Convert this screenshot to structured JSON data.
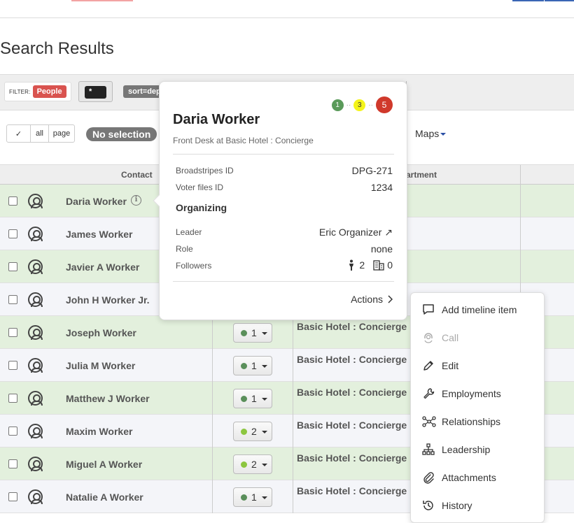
{
  "page": {
    "title": "Search Results"
  },
  "filter": {
    "label": "FILTER:",
    "chip": "People",
    "query": "*",
    "sort": "sort=dep"
  },
  "selection": {
    "check": "✓",
    "all": "all",
    "page": "page",
    "none": "No selection",
    "maps": "Maps"
  },
  "table": {
    "headers": {
      "contact": "Contact",
      "department": "artment"
    },
    "rows": [
      {
        "name": "Daria Worker",
        "rating": "",
        "employment": "",
        "style": "green",
        "info": true
      },
      {
        "name": "James Worker",
        "rating": "",
        "employment": "",
        "style": "plain"
      },
      {
        "name": "Javier A Worker",
        "rating": "",
        "employment": "",
        "style": "green"
      },
      {
        "name": "John H Worker Jr.",
        "rating": "",
        "employment": "",
        "style": "plain"
      },
      {
        "name": "Joseph Worker",
        "rating": "1",
        "dot": "#5a8f5a",
        "employment": "Basic Hotel : Concierge",
        "style": "green"
      },
      {
        "name": "Julia M Worker",
        "rating": "1",
        "dot": "#5a8f5a",
        "employment": "Basic Hotel : Concierge",
        "style": "plain"
      },
      {
        "name": "Matthew J Worker",
        "rating": "1",
        "dot": "#5a8f5a",
        "employment": "Basic Hotel : Concierge",
        "style": "green"
      },
      {
        "name": "Maxim Worker",
        "rating": "2",
        "dot": "#8cc63f",
        "employment": "Basic Hotel : Concierge",
        "style": "plain"
      },
      {
        "name": "Miguel A Worker",
        "rating": "2",
        "dot": "#8cc63f",
        "employment": "Basic Hotel : Concierge",
        "style": "green"
      },
      {
        "name": "Natalie A Worker",
        "rating": "1",
        "dot": "#5a8f5a",
        "employment": "Basic Hotel : Concierge",
        "style": "plain"
      }
    ]
  },
  "popover": {
    "ratings": [
      {
        "value": "1",
        "color": "#5a9a5a"
      },
      {
        "value": "3",
        "color": "#f4f41a"
      },
      {
        "value": "5",
        "color": "#d0392b"
      }
    ],
    "rating_sep": "··",
    "name": "Daria Worker",
    "subtitle": "Front Desk at Basic Hotel : Concierge",
    "broadstripes_label": "Broadstripes ID",
    "broadstripes_value": "DPG-271",
    "voter_label": "Voter files ID",
    "voter_value": "1234",
    "section": "Organizing",
    "leader_label": "Leader",
    "leader_value": "Eric Organizer",
    "role_label": "Role",
    "role_value": "none",
    "followers_label": "Followers",
    "followers_people": "2",
    "followers_orgs": "0",
    "actions": "Actions"
  },
  "menu": {
    "items": [
      {
        "label": "Add timeline item",
        "icon": "comment-icon",
        "disabled": false
      },
      {
        "label": "Call",
        "icon": "headset-icon",
        "disabled": true
      },
      {
        "label": "Edit",
        "icon": "pencil-icon",
        "disabled": false
      },
      {
        "label": "Employments",
        "icon": "wrench-icon",
        "disabled": false
      },
      {
        "label": "Relationships",
        "icon": "network-icon",
        "disabled": false
      },
      {
        "label": "Leadership",
        "icon": "hierarchy-icon",
        "disabled": false
      },
      {
        "label": "Attachments",
        "icon": "paperclip-icon",
        "disabled": false
      },
      {
        "label": "History",
        "icon": "history-icon",
        "disabled": false
      }
    ]
  }
}
